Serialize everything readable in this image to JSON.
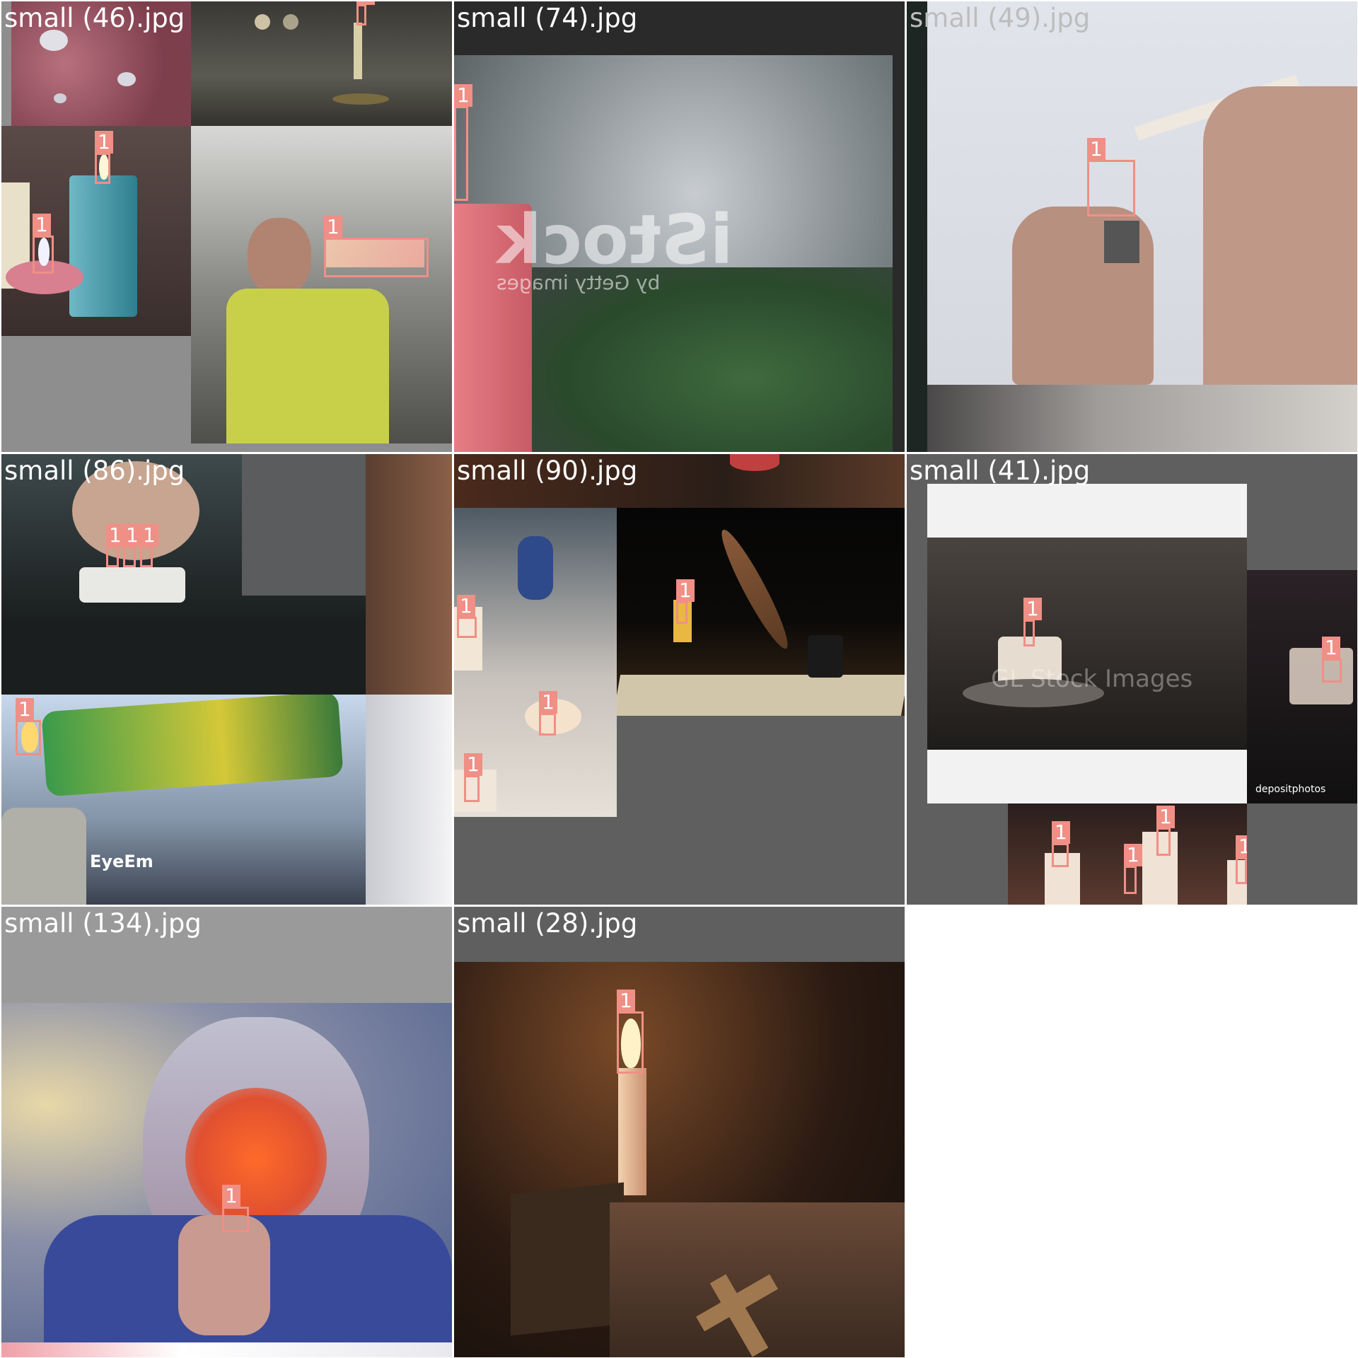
{
  "grid": {
    "tiles": [
      {
        "filename": "small (46).jpg"
      },
      {
        "filename": "small (74).jpg"
      },
      {
        "filename": "small (49).jpg"
      },
      {
        "filename": "small (86).jpg"
      },
      {
        "filename": "small (90).jpg"
      },
      {
        "filename": "small (41).jpg"
      },
      {
        "filename": "small (134).jpg"
      },
      {
        "filename": "small (28).jpg"
      }
    ]
  },
  "detection": {
    "class_label": "1",
    "box_color": "#f08f86"
  },
  "watermarks": {
    "istock_main": "iStock",
    "istock_sub": "by Getty images",
    "eyeem": "EyeEm",
    "depositphotos": "depositphotos",
    "gl_stock": "GL Stock Images"
  }
}
